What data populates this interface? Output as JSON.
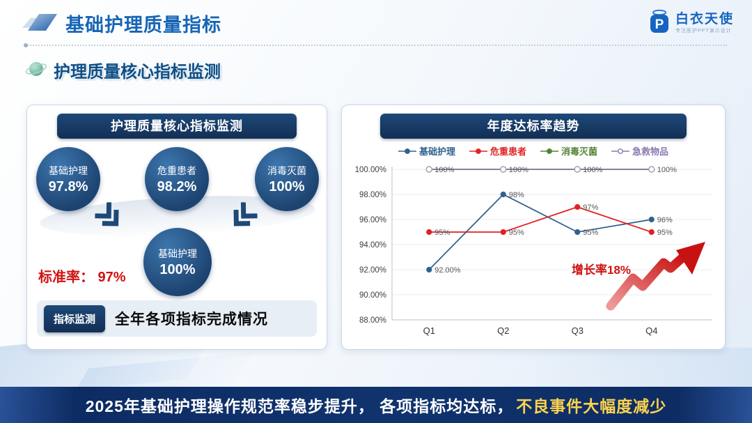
{
  "header": {
    "title": "基础护理质量指标",
    "logo": {
      "brand": "白衣天使",
      "tagline": "专注医护PPT演示设计",
      "monogram": "P"
    }
  },
  "section_title": "护理质量核心指标监测",
  "left_panel": {
    "header": "护理质量核心指标监测",
    "circles": [
      {
        "label": "基础护理",
        "value": "97.8%"
      },
      {
        "label": "危重患者",
        "value": "98.2%"
      },
      {
        "label": "消毒灭菌",
        "value": "100%"
      }
    ],
    "center_circle": {
      "label": "基础护理",
      "value": "100%"
    },
    "standard_rate": "标准率： 97%",
    "footer": {
      "button": "指标监测",
      "text": "全年各项指标完成情况"
    }
  },
  "right_panel": {
    "header": "年度达标率趋势"
  },
  "chart_data": {
    "type": "line",
    "title": "年度达标率趋势",
    "categories": [
      "Q1",
      "Q2",
      "Q3",
      "Q4"
    ],
    "series": [
      {
        "name": "基础护理",
        "color": "#31618f",
        "marker": "dot",
        "values": [
          92,
          98,
          95,
          96
        ],
        "labels": [
          "92.00%",
          "98%",
          "95%",
          "96%"
        ]
      },
      {
        "name": "危重患者",
        "color": "#e02222",
        "marker": "dot",
        "values": [
          95,
          95,
          97,
          95
        ],
        "labels": [
          "95%",
          "95%",
          "97%",
          "95%"
        ]
      },
      {
        "name": "消毒灭菌",
        "color": "#548235",
        "marker": "dot",
        "values": [
          100,
          100,
          100,
          100
        ],
        "labels": [
          "",
          "",
          "",
          ""
        ]
      },
      {
        "name": "急救物品",
        "color": "#8a7ab0",
        "marker": "open",
        "values": [
          100,
          100,
          100,
          100
        ],
        "labels": [
          "100%",
          "100%",
          "100%",
          "100%"
        ]
      }
    ],
    "ylim": [
      88,
      100
    ],
    "ytick_step": 2,
    "legend_position": "top",
    "grid": true,
    "annotation": "增长率18%"
  },
  "footer_banner": {
    "text_main": "2025年基础护理操作规范率稳步提升， 各项指标均达标，",
    "text_highlight": "不良事件大幅度减少"
  }
}
